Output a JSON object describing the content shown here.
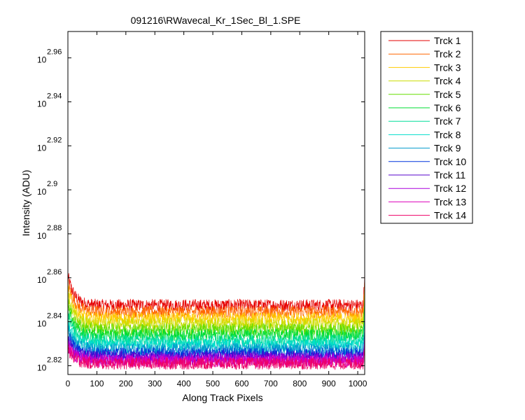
{
  "chart_data": {
    "type": "line",
    "title": "091216\\RWavecal_Kr_1Sec_Bl_1.SPE",
    "xlabel": "Along Track Pixels",
    "ylabel": "Intensity (ADU)",
    "xlim": [
      0,
      1024
    ],
    "ylim_log10": [
      2.816,
      2.972
    ],
    "y_scale": "log",
    "x_ticks": [
      0,
      100,
      200,
      300,
      400,
      500,
      600,
      700,
      800,
      900,
      1000
    ],
    "y_ticks": [
      {
        "base": "10",
        "exp": "2.82",
        "value": 2.82
      },
      {
        "base": "10",
        "exp": "2.84",
        "value": 2.84
      },
      {
        "base": "10",
        "exp": "2.86",
        "value": 2.86
      },
      {
        "base": "10",
        "exp": "2.88",
        "value": 2.88
      },
      {
        "base": "10",
        "exp": "2.9",
        "value": 2.9
      },
      {
        "base": "10",
        "exp": "2.92",
        "value": 2.92
      },
      {
        "base": "10",
        "exp": "2.94",
        "value": 2.94
      },
      {
        "base": "10",
        "exp": "2.96",
        "value": 2.96
      }
    ],
    "grid": false,
    "legend_position": "outside-right",
    "noise_log10": 0.0028,
    "series": [
      {
        "name": "Trck 1",
        "color": "#e60000",
        "base": 2.8475,
        "start": 2.861,
        "end": 2.862
      },
      {
        "name": "Trck 2",
        "color": "#ff6600",
        "base": 2.8445,
        "start": 2.858,
        "end": 2.858
      },
      {
        "name": "Trck 3",
        "color": "#ffcc00",
        "base": 2.8415,
        "start": 2.855,
        "end": 2.855
      },
      {
        "name": "Trck 4",
        "color": "#ccdd00",
        "base": 2.839,
        "start": 2.852,
        "end": 2.852
      },
      {
        "name": "Trck 5",
        "color": "#66dd00",
        "base": 2.8365,
        "start": 2.849,
        "end": 2.85
      },
      {
        "name": "Trck 6",
        "color": "#00dd33",
        "base": 2.834,
        "start": 2.846,
        "end": 2.847
      },
      {
        "name": "Trck 7",
        "color": "#00dd99",
        "base": 2.8315,
        "start": 2.843,
        "end": 2.844
      },
      {
        "name": "Trck 8",
        "color": "#00ddcc",
        "base": 2.8295,
        "start": 2.84,
        "end": 2.841
      },
      {
        "name": "Trck 9",
        "color": "#0099cc",
        "base": 2.8275,
        "start": 2.837,
        "end": 2.838
      },
      {
        "name": "Trck 10",
        "color": "#0033dd",
        "base": 2.8255,
        "start": 2.834,
        "end": 2.835
      },
      {
        "name": "Trck 11",
        "color": "#5500cc",
        "base": 2.824,
        "start": 2.832,
        "end": 2.833
      },
      {
        "name": "Trck 12",
        "color": "#aa00dd",
        "base": 2.823,
        "start": 2.83,
        "end": 2.831
      },
      {
        "name": "Trck 13",
        "color": "#dd00bb",
        "base": 2.822,
        "start": 2.829,
        "end": 2.83
      },
      {
        "name": "Trck 14",
        "color": "#ee0066",
        "base": 2.821,
        "start": 2.828,
        "end": 2.829
      }
    ]
  }
}
